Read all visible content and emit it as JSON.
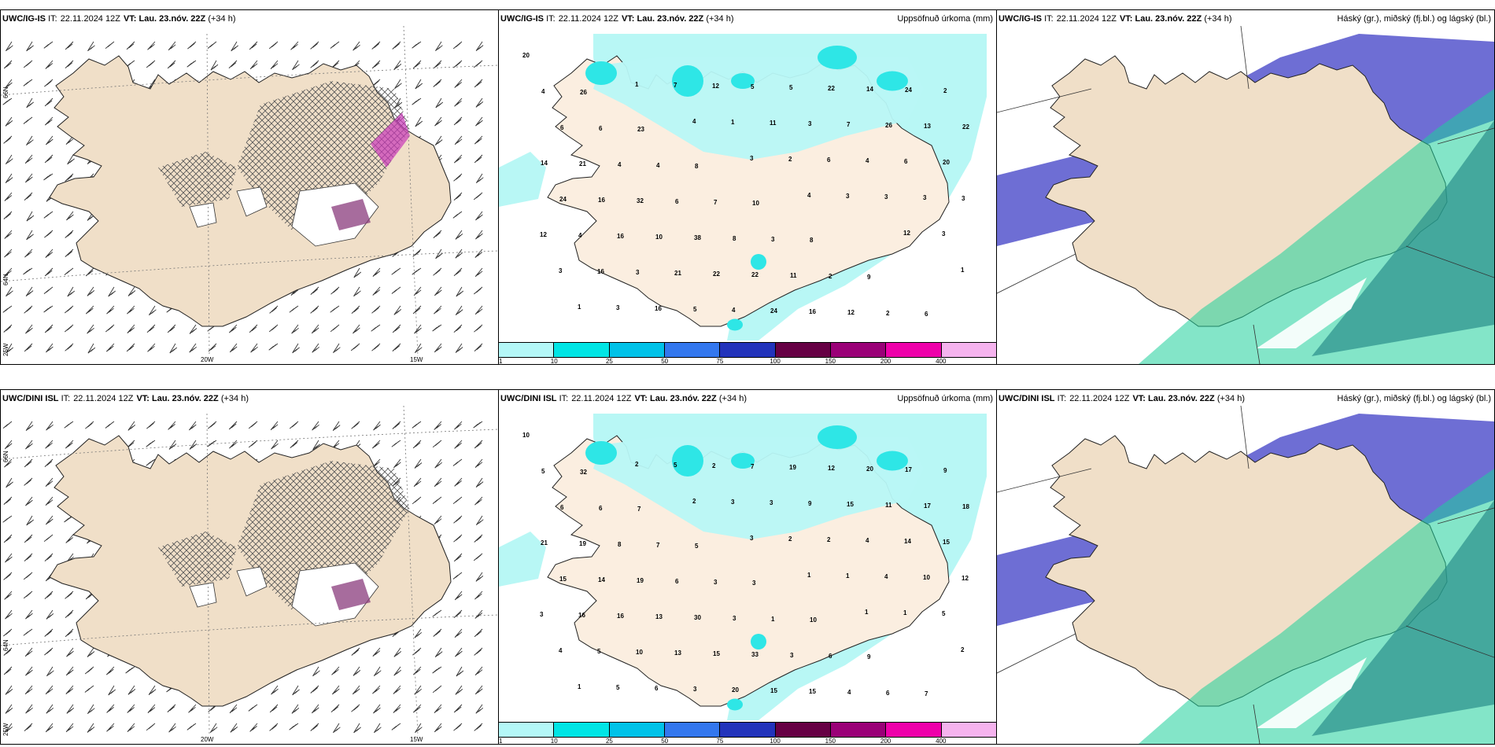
{
  "rows": [
    {
      "model": "UWC/IG-IS",
      "it_label": "IT:",
      "it_value": "22.11.2024 12Z",
      "vt_label": "VT:",
      "vt_value": "Lau. 23.nóv. 22Z",
      "lead": "(+34 h)"
    },
    {
      "model": "UWC/DINI ISL",
      "it_label": "IT:",
      "it_value": "22.11.2024 12Z",
      "vt_label": "VT:",
      "vt_value": "Lau. 23.nóv. 22Z",
      "lead": "(+34 h)"
    }
  ],
  "panel_titles": {
    "precip": "Uppsöfnuð úrkoma (mm)",
    "clouds": "Háský (gr.), miðský (fj.bl.) og lágský (bl.)"
  },
  "axis_labels": {
    "lat66": "66N",
    "lat64": "64N",
    "lon25": "25W",
    "lon20": "20W",
    "lon15": "15W"
  },
  "colorbar": {
    "labels": [
      "1",
      "10",
      "25",
      "50",
      "75",
      "100",
      "150",
      "200",
      "400"
    ],
    "colors": [
      "#b4f7f7",
      "#00e5e5",
      "#00c2e8",
      "#3377ee",
      "#2233bb",
      "#660044",
      "#9a0077",
      "#ee00aa",
      "#f5b3ee"
    ]
  },
  "colors": {
    "land": "#f0dfc8",
    "land_precip_panel": "#fbeee0",
    "precip_light": "#b8f7f5",
    "precip_mid": "#2ee6e6",
    "cloud_high": "#5555cc",
    "cloud_mid": "#2a8f8a",
    "cloud_low": "#1dcf9a",
    "hatch": "#555555"
  },
  "precip_values": [
    [
      "20",
      "26",
      "23",
      "8",
      "10",
      "8",
      "9",
      "6",
      "4",
      "6",
      "4",
      "7",
      "3",
      "2",
      "2",
      "2",
      "6",
      "4",
      "6",
      "8",
      "11",
      "12",
      "24",
      "22",
      "21",
      "32",
      "38",
      "22",
      "16",
      "14",
      "13",
      "14",
      "16",
      "10",
      "22",
      "24",
      "22",
      "26",
      "20",
      "24",
      "16",
      "21",
      "4",
      "5",
      "7",
      "6",
      "3",
      "4",
      "3",
      "5",
      "5",
      "3",
      "4",
      "3",
      "12",
      "16",
      "16",
      "12",
      "11",
      "6",
      "3",
      "3",
      "3",
      "3",
      "7",
      "1",
      "2",
      "3",
      "12",
      "1",
      "1",
      "1",
      "4",
      "3",
      "4"
    ],
    [
      "10",
      "32",
      "7",
      "5",
      "3",
      "10",
      "9",
      "7",
      "5",
      "6",
      "7",
      "3",
      "1",
      "6",
      "6",
      "9",
      "6",
      "8",
      "6",
      "3",
      "3",
      "4",
      "17",
      "18",
      "19",
      "19",
      "30",
      "33",
      "15",
      "20",
      "17",
      "21",
      "14",
      "13",
      "15",
      "15",
      "12",
      "11",
      "15",
      "15",
      "16",
      "13",
      "20",
      "19",
      "15",
      "14",
      "12",
      "16",
      "10",
      "3",
      "7",
      "9",
      "4",
      "10",
      "3",
      "5",
      "6",
      "2",
      "3",
      "2",
      "4",
      "5",
      "4",
      "5",
      "5",
      "3",
      "2",
      "1",
      "1",
      "2",
      "1",
      "2",
      "2",
      "3",
      "1",
      "1"
    ]
  ]
}
